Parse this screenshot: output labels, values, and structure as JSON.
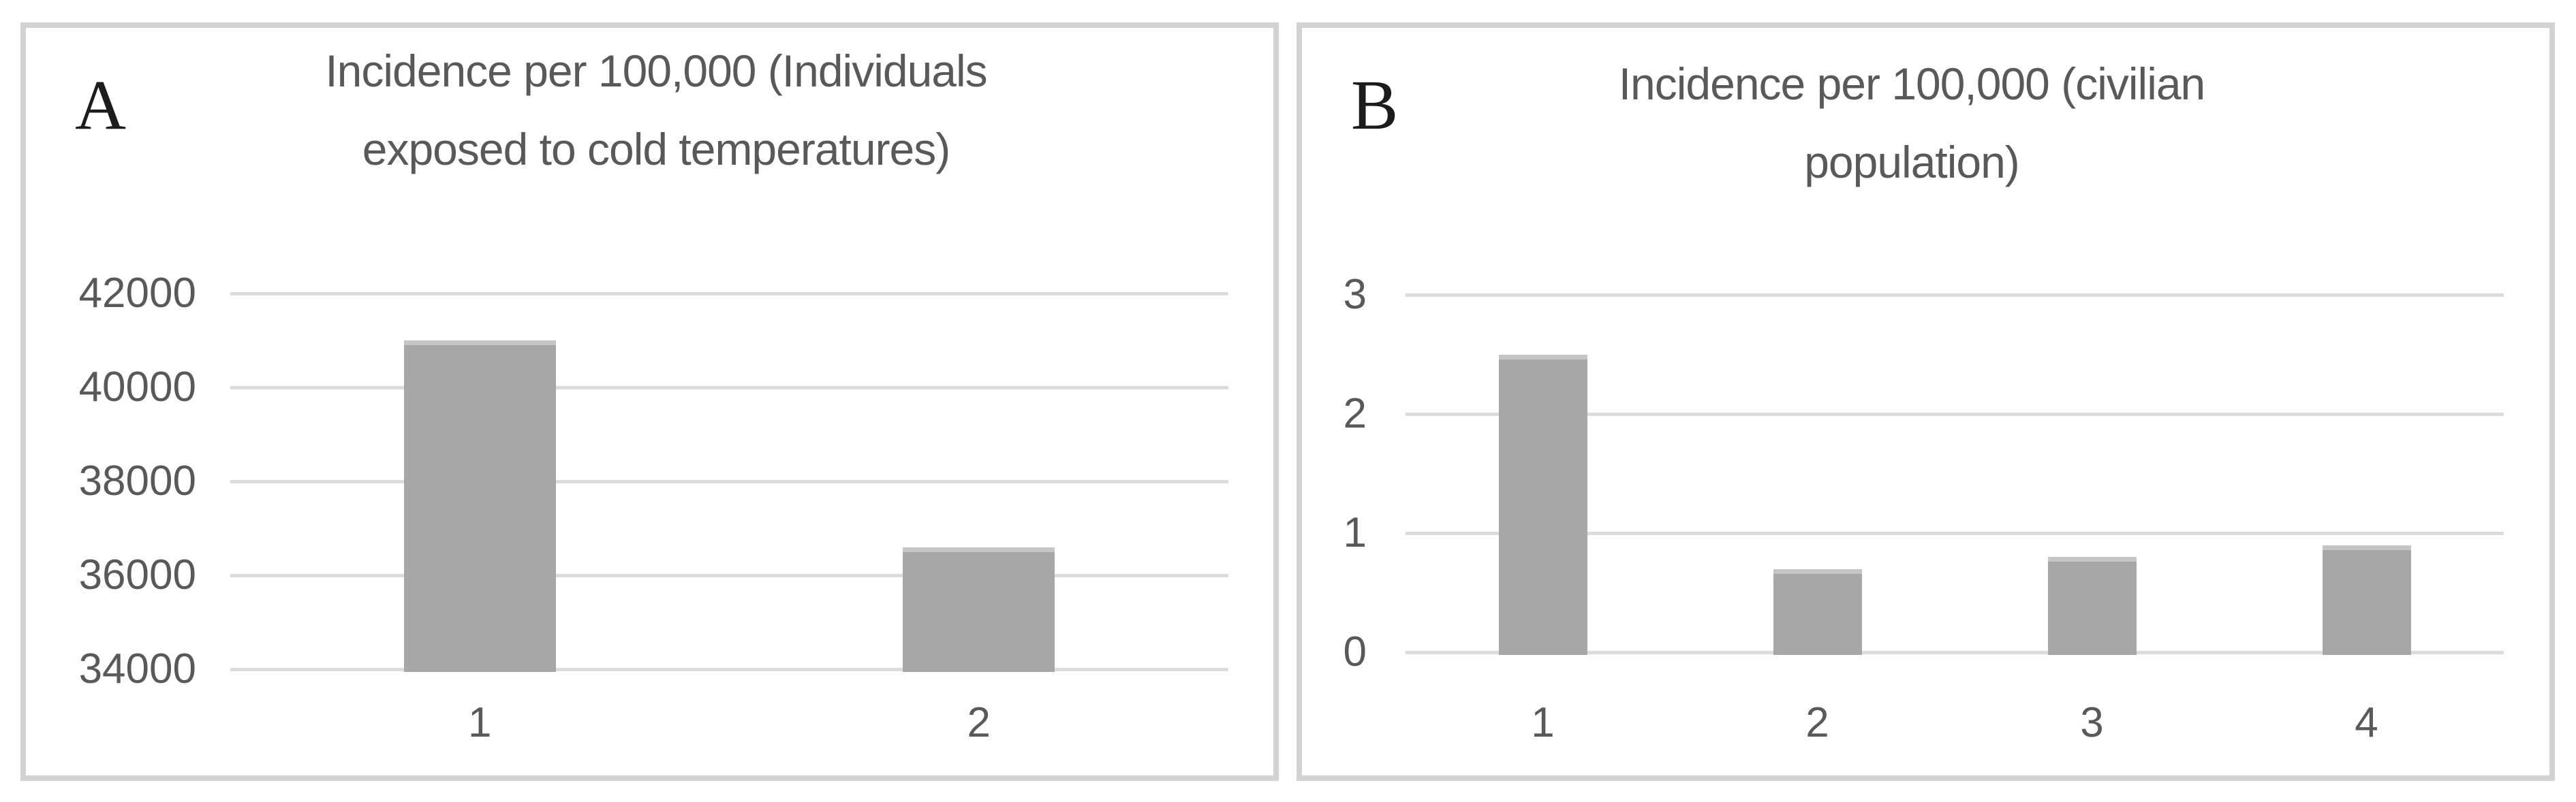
{
  "colors": {
    "background": "#ffffff",
    "panel_border": "#d2d2d2",
    "panel_letter": "#1c1c1c",
    "title_text": "#595959",
    "tick_text": "#595959",
    "gridline": "#dcdcdc",
    "bar": "#a7a7a7",
    "bar_cap": "#c6c6c6"
  },
  "chart_data": [
    {
      "type": "bar",
      "panel_label": "A",
      "title": "Incidence per 100,000 (Individuals exposed to cold temperatures)",
      "title_lines": [
        "Incidence per 100,000 (Individuals",
        "exposed to cold temperatures)"
      ],
      "categories": [
        "1",
        "2"
      ],
      "values": [
        41000,
        36600
      ],
      "ylim": [
        34000,
        42000
      ],
      "yticks": [
        34000,
        36000,
        38000,
        40000,
        42000
      ],
      "ytick_labels": [
        "34000",
        "36000",
        "38000",
        "40000",
        "42000"
      ],
      "xlabel": "",
      "ylabel": "",
      "grid": true,
      "legend": "none",
      "bar_color": "#a7a7a7"
    },
    {
      "type": "bar",
      "panel_label": "B",
      "title": "Incidence per 100,000 (civilian population)",
      "title_lines": [
        "Incidence per 100,000 (civilian",
        "population)"
      ],
      "categories": [
        "1",
        "2",
        "3",
        "4"
      ],
      "values": [
        2.5,
        0.7,
        0.8,
        0.9
      ],
      "ylim": [
        0,
        3
      ],
      "yticks": [
        0,
        1,
        2,
        3
      ],
      "ytick_labels": [
        "0",
        "1",
        "2",
        "3"
      ],
      "xlabel": "",
      "ylabel": "",
      "grid": true,
      "legend": "none",
      "bar_color": "#a7a7a7"
    }
  ]
}
